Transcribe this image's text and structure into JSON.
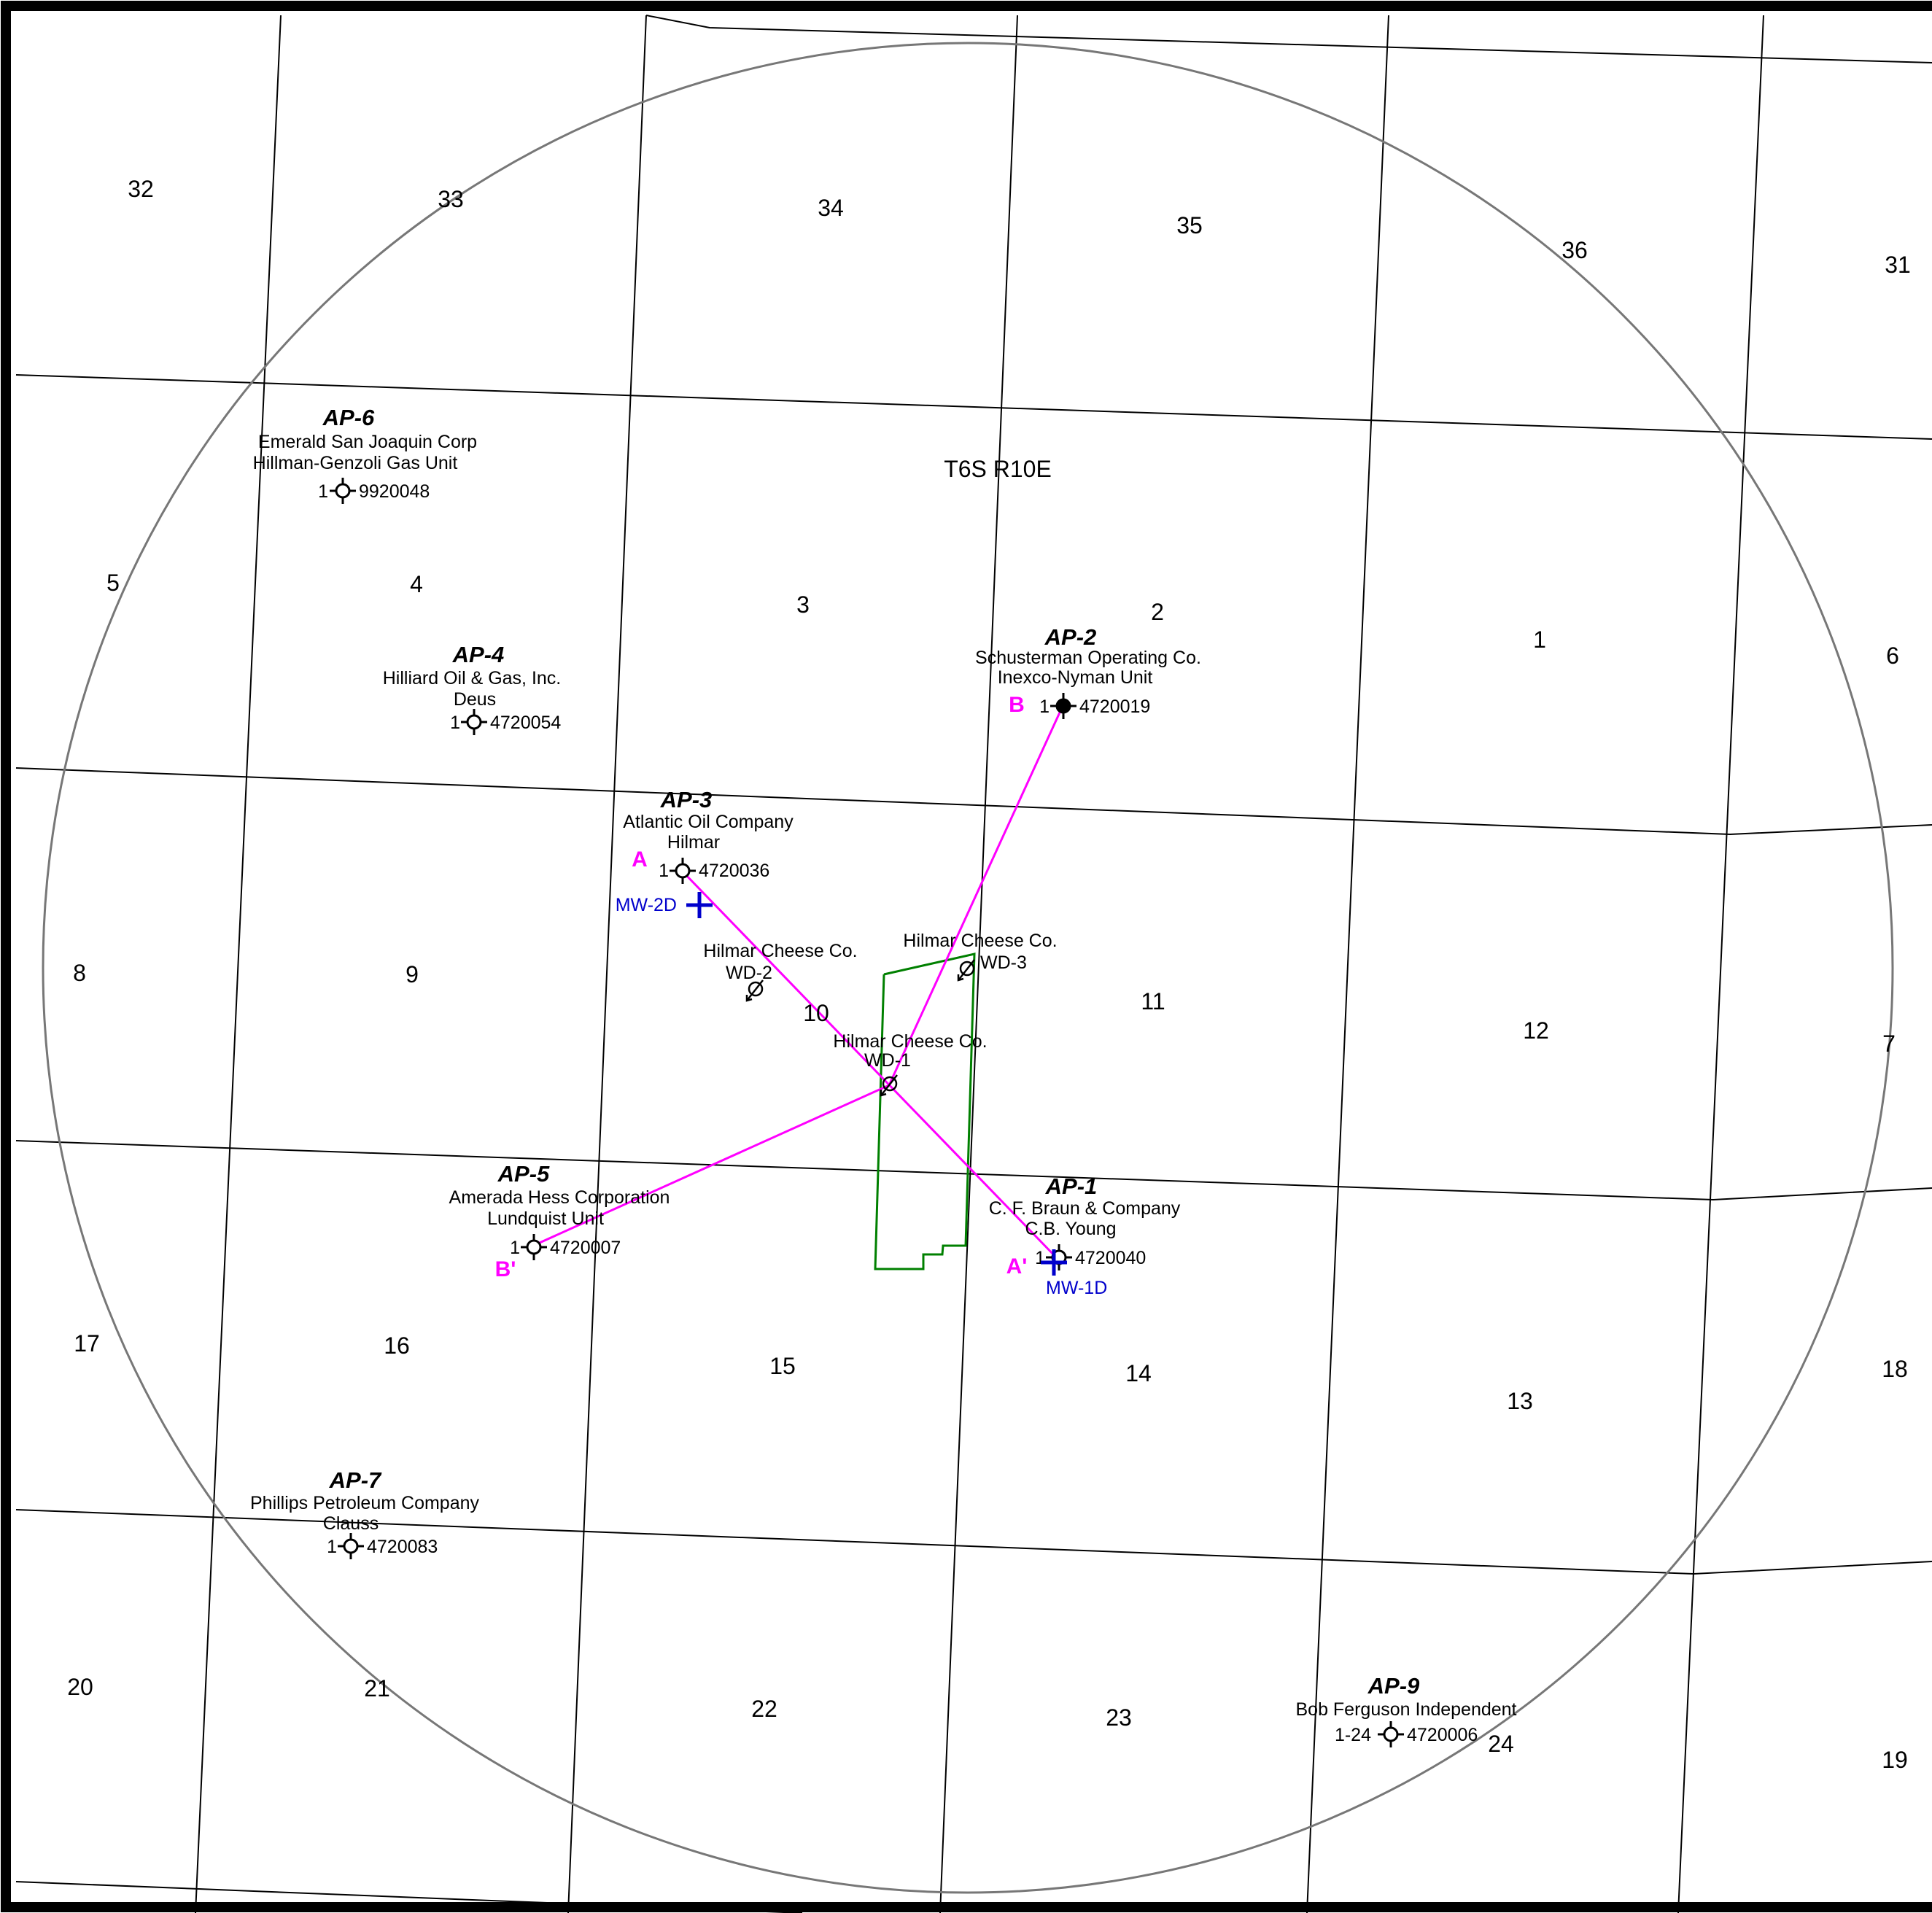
{
  "map": {
    "township": "T6S R10E",
    "colors": {
      "grid": "#000000",
      "radius_circle": "#777777",
      "cross_section": "#ff00ff",
      "facility_boundary": "#008000",
      "monitoring_well": "#0000cc"
    },
    "sections": [
      "32",
      "33",
      "34",
      "35",
      "36",
      "31",
      "5",
      "4",
      "3",
      "2",
      "1",
      "6",
      "8",
      "9",
      "10",
      "11",
      "12",
      "7",
      "17",
      "16",
      "15",
      "14",
      "13",
      "18",
      "20",
      "21",
      "22",
      "23",
      "24",
      "19"
    ],
    "area_of_review_wells": [
      {
        "id": "AP-1",
        "operator": "C. F. Braun & Company",
        "lease": "C.B. Young",
        "well_no": "1",
        "api": "4720040"
      },
      {
        "id": "AP-2",
        "operator": "Schusterman Operating Co.",
        "lease": "Inexco-Nyman Unit",
        "well_no": "1",
        "api": "4720019"
      },
      {
        "id": "AP-3",
        "operator": "Atlantic Oil Company",
        "lease": "Hilmar",
        "well_no": "1",
        "api": "4720036"
      },
      {
        "id": "AP-4",
        "operator": "Hilliard Oil & Gas, Inc.",
        "lease": "Deus",
        "well_no": "1",
        "api": "4720054"
      },
      {
        "id": "AP-5",
        "operator": "Amerada Hess Corporation",
        "lease": "Lundquist Unit",
        "well_no": "1",
        "api": "4720007"
      },
      {
        "id": "AP-6",
        "operator": "Emerald San Joaquin Corp",
        "lease": "Hillman-Genzoli Gas Unit",
        "well_no": "1",
        "api": "9920048"
      },
      {
        "id": "AP-7",
        "operator": "Phillips Petroleum Company",
        "lease": "Clauss",
        "well_no": "1",
        "api": "4720083"
      },
      {
        "id": "AP-9",
        "operator": "Bob Ferguson Independent",
        "lease": "",
        "well_no": "1-24",
        "api": "4720006"
      }
    ],
    "disposal_wells": [
      {
        "operator": "Hilmar Cheese Co.",
        "name": "WD-1"
      },
      {
        "operator": "Hilmar Cheese Co.",
        "name": "WD-2"
      },
      {
        "operator": "Hilmar Cheese Co.",
        "name": "WD-3"
      }
    ],
    "monitoring_wells": [
      "MW-1D",
      "MW-2D"
    ],
    "cross_sections": {
      "a_start": "A",
      "a_end": "A'",
      "b_start": "B",
      "b_end": "B'"
    }
  }
}
